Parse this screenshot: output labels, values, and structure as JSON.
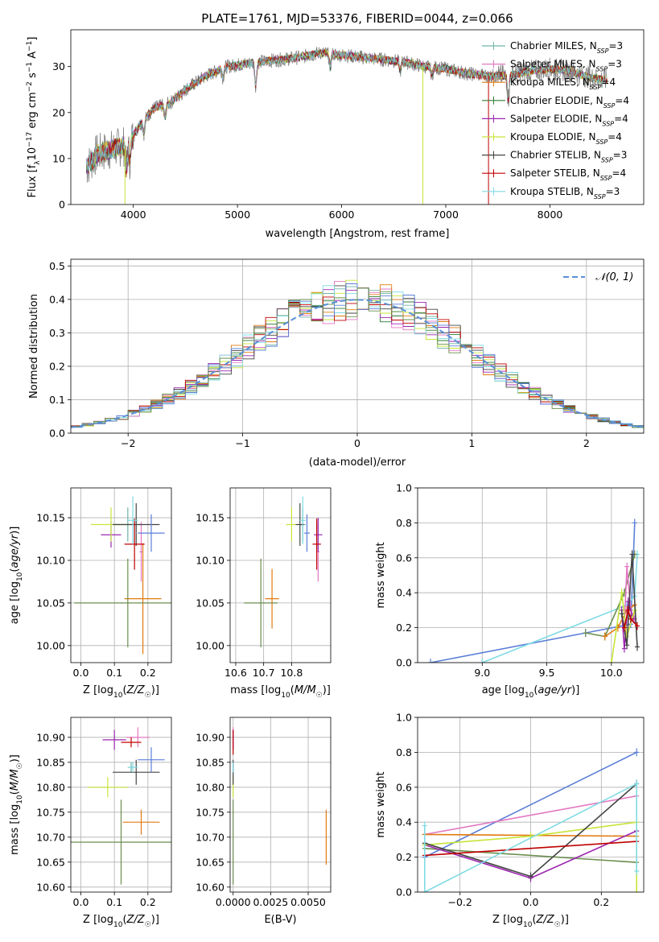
{
  "figure": {
    "title": "PLATE=1761, MJD=53376, FIBERID=0044, z=0.066"
  },
  "colors": {
    "grid": "#b0b0b0",
    "axis": "#000000",
    "gaussian": "#5a8fd6"
  },
  "models": [
    {
      "label": "Chabrier MILES",
      "nssp": "3",
      "color": "#6fb3a8"
    },
    {
      "label": "Salpeter MILES",
      "nssp": "3",
      "color": "#e377c2"
    },
    {
      "label": "Kroupa MILES",
      "nssp": "4",
      "color": "#e07b10"
    },
    {
      "label": "Chabrier ELODIE",
      "nssp": "4",
      "color": "#2e7d32"
    },
    {
      "label": "Salpeter ELODIE",
      "nssp": "4",
      "color": "#9c27b0"
    },
    {
      "label": "Kroupa ELODIE",
      "nssp": "4",
      "color": "#c6e53a"
    },
    {
      "label": "Chabrier STELIB",
      "nssp": "3",
      "color": "#444444"
    },
    {
      "label": "Salpeter STELIB",
      "nssp": "4",
      "color": "#c00000"
    },
    {
      "label": "Kroupa STELIB",
      "nssp": "3",
      "color": "#7fdbe4"
    }
  ],
  "extra_series_colors": [
    "#5b7fd8",
    "#6b8e4e"
  ],
  "chart_data": [
    {
      "type": "line",
      "id": "spectrum",
      "title": "PLATE=1761, MJD=53376, FIBERID=0044, z=0.066",
      "xlabel": "wavelength [Angstrom, rest frame]",
      "ylabel": "Flux [f_λ 10^-17 erg cm^-2 s^-1 A^-1]",
      "xlim": [
        3400,
        8900
      ],
      "ylim": [
        0,
        38
      ],
      "xticks": [
        4000,
        5000,
        6000,
        7000,
        8000
      ],
      "yticks": [
        0,
        10,
        20,
        30
      ],
      "grid": false,
      "legend": "right",
      "continuum": [
        [
          3550,
          8
        ],
        [
          3650,
          11
        ],
        [
          3800,
          12
        ],
        [
          3950,
          13
        ],
        [
          4050,
          17
        ],
        [
          4200,
          21
        ],
        [
          4350,
          22
        ],
        [
          4500,
          25
        ],
        [
          4700,
          28
        ],
        [
          4900,
          30
        ],
        [
          5050,
          30.5
        ],
        [
          5200,
          31
        ],
        [
          5400,
          31.5
        ],
        [
          5600,
          32
        ],
        [
          5800,
          33
        ],
        [
          6000,
          32.5
        ],
        [
          6200,
          32
        ],
        [
          6400,
          31.5
        ],
        [
          6600,
          31
        ],
        [
          6800,
          30
        ],
        [
          7000,
          29.5
        ],
        [
          7200,
          28.5
        ],
        [
          7400,
          28
        ],
        [
          7600,
          28
        ],
        [
          7800,
          29
        ],
        [
          8000,
          29.5
        ],
        [
          8200,
          29
        ],
        [
          8400,
          27.5
        ],
        [
          8550,
          27
        ]
      ],
      "features": [
        [
          3934,
          5
        ],
        [
          3968,
          4
        ],
        [
          4102,
          3
        ],
        [
          4304,
          3
        ],
        [
          4861,
          2
        ],
        [
          5175,
          5
        ],
        [
          5890,
          3
        ],
        [
          6563,
          2
        ],
        [
          6867,
          2
        ],
        [
          7600,
          5
        ]
      ],
      "spikes": [
        [
          3920,
          0
        ],
        [
          6780,
          0
        ],
        [
          7410,
          0
        ]
      ]
    },
    {
      "type": "histogram",
      "id": "residuals",
      "xlabel": "(data-model)/error",
      "ylabel": "Normed distribution",
      "xlim": [
        -2.5,
        2.5
      ],
      "ylim": [
        0,
        0.52
      ],
      "xticks": [
        -2,
        -1,
        0,
        1,
        2
      ],
      "yticks": [
        0.0,
        0.1,
        0.2,
        0.3,
        0.4,
        0.5
      ],
      "grid": true,
      "legend": "top-right",
      "bin_width": 0.1,
      "gaussian_label": "𝒩(0, 1)"
    },
    {
      "type": "scatter",
      "id": "age_vs_Z",
      "xlabel": "Z [log10(Z/Z☉)]",
      "ylabel": "age [log10(age/yr)]",
      "xlim": [
        -0.03,
        0.27
      ],
      "ylim": [
        9.98,
        10.185
      ],
      "xticks": [
        0.0,
        0.1,
        0.2
      ],
      "yticks": [
        10.0,
        10.05,
        10.1,
        10.15
      ],
      "grid": true,
      "points": [
        {
          "x": 0.14,
          "y": 10.142,
          "xerr": 0.04,
          "yerr": 0.02,
          "color": "#6fb3a8"
        },
        {
          "x": 0.18,
          "y": 10.11,
          "xerr": 0.005,
          "yerr": 0.035,
          "color": "#e377c2"
        },
        {
          "x": 0.185,
          "y": 10.055,
          "xerr": 0.055,
          "yerr": 0.065,
          "color": "#e07b10"
        },
        {
          "x": 0.14,
          "y": 10.05,
          "xerr": 0.16,
          "yerr": 0.052,
          "color": "#6b8e4e"
        },
        {
          "x": 0.09,
          "y": 10.13,
          "xerr": 0.03,
          "yerr": 0.015,
          "color": "#9c27b0"
        },
        {
          "x": 0.09,
          "y": 10.142,
          "xerr": 0.06,
          "yerr": 0.02,
          "color": "#c6e53a"
        },
        {
          "x": 0.165,
          "y": 10.142,
          "xerr": 0.07,
          "yerr": 0.025,
          "color": "#444444"
        },
        {
          "x": 0.16,
          "y": 10.119,
          "xerr": 0.03,
          "yerr": 0.03,
          "color": "#c00000"
        },
        {
          "x": 0.155,
          "y": 10.147,
          "xerr": 0.015,
          "yerr": 0.028,
          "color": "#7fdbe4"
        },
        {
          "x": 0.21,
          "y": 10.132,
          "xerr": 0.04,
          "yerr": 0.022,
          "color": "#5b7fd8"
        }
      ]
    },
    {
      "type": "scatter",
      "id": "age_vs_mass",
      "xlabel": "mass [log10(M/M☉)]",
      "ylabel": "",
      "xlim": [
        10.58,
        10.94
      ],
      "ylim": [
        9.98,
        10.185
      ],
      "xticks": [
        10.6,
        10.7,
        10.8
      ],
      "yticks": [
        10.0,
        10.05,
        10.1,
        10.15
      ],
      "grid": true,
      "points": [
        {
          "x": 10.84,
          "y": 10.142,
          "xerr": 0.01,
          "yerr": 0.02,
          "color": "#6fb3a8"
        },
        {
          "x": 10.895,
          "y": 10.11,
          "xerr": 0.005,
          "yerr": 0.035,
          "color": "#e377c2"
        },
        {
          "x": 10.73,
          "y": 10.055,
          "xerr": 0.025,
          "yerr": 0.035,
          "color": "#e07b10"
        },
        {
          "x": 10.69,
          "y": 10.05,
          "xerr": 0.06,
          "yerr": 0.052,
          "color": "#6b8e4e"
        },
        {
          "x": 10.895,
          "y": 10.13,
          "xerr": 0.015,
          "yerr": 0.02,
          "color": "#9c27b0"
        },
        {
          "x": 10.8,
          "y": 10.142,
          "xerr": 0.02,
          "yerr": 0.02,
          "color": "#c6e53a"
        },
        {
          "x": 10.83,
          "y": 10.142,
          "xerr": 0.015,
          "yerr": 0.025,
          "color": "#444444"
        },
        {
          "x": 10.89,
          "y": 10.119,
          "xerr": 0.015,
          "yerr": 0.03,
          "color": "#c00000"
        },
        {
          "x": 10.84,
          "y": 10.147,
          "xerr": 0.01,
          "yerr": 0.028,
          "color": "#7fdbe4"
        },
        {
          "x": 10.855,
          "y": 10.132,
          "xerr": 0.01,
          "yerr": 0.022,
          "color": "#5b7fd8"
        }
      ]
    },
    {
      "type": "line",
      "id": "massweight_vs_age",
      "xlabel": "age [log10(age/yr)]",
      "ylabel": "mass weight",
      "xlim": [
        8.5,
        10.25
      ],
      "ylim": [
        0,
        1.0
      ],
      "xticks": [
        9.0,
        9.5,
        10.0
      ],
      "yticks": [
        0.0,
        0.2,
        0.4,
        0.6,
        0.8,
        1.0
      ],
      "grid": true,
      "series": [
        {
          "color": "#5b7fd8",
          "x": [
            8.6,
            9.8,
            10.15,
            10.18
          ],
          "y": [
            0.0,
            0.17,
            0.22,
            0.8
          ]
        },
        {
          "color": "#7fdbe4",
          "x": [
            9.0,
            10.12,
            10.18,
            10.2
          ],
          "y": [
            0.0,
            0.33,
            0.38,
            0.62
          ]
        },
        {
          "color": "#6b8e4e",
          "x": [
            9.8,
            9.95,
            10.1,
            10.18
          ],
          "y": [
            0.17,
            0.15,
            0.4,
            0.62
          ]
        },
        {
          "color": "#e07b10",
          "x": [
            9.95,
            10.05,
            10.12,
            10.18
          ],
          "y": [
            0.15,
            0.2,
            0.3,
            0.33
          ]
        },
        {
          "color": "#e377c2",
          "x": [
            10.1,
            10.12,
            10.15,
            10.18
          ],
          "y": [
            0.2,
            0.55,
            0.3,
            0.25
          ]
        },
        {
          "color": "#9c27b0",
          "x": [
            10.08,
            10.1,
            10.13,
            10.17
          ],
          "y": [
            0.3,
            0.08,
            0.35,
            0.25
          ]
        },
        {
          "color": "#c6e53a",
          "x": [
            10.0,
            10.08,
            10.12,
            10.18
          ],
          "y": [
            0.0,
            0.4,
            0.15,
            0.3
          ]
        },
        {
          "color": "#444444",
          "x": [
            10.08,
            10.12,
            10.16,
            10.2
          ],
          "y": [
            0.28,
            0.1,
            0.62,
            0.09
          ]
        },
        {
          "color": "#c00000",
          "x": [
            10.1,
            10.13,
            10.15,
            10.2
          ],
          "y": [
            0.2,
            0.3,
            0.25,
            0.21
          ]
        }
      ]
    },
    {
      "type": "scatter",
      "id": "mass_vs_Z",
      "xlabel": "Z [log10(Z/Z☉)]",
      "ylabel": "mass [log10(M/M☉)]",
      "xlim": [
        -0.03,
        0.27
      ],
      "ylim": [
        10.59,
        10.94
      ],
      "xticks": [
        0.0,
        0.1,
        0.2
      ],
      "yticks": [
        10.6,
        10.65,
        10.7,
        10.75,
        10.8,
        10.85,
        10.9
      ],
      "grid": true,
      "points": [
        {
          "x": 0.15,
          "y": 10.84,
          "xerr": 0.01,
          "yerr": 0.01,
          "color": "#6fb3a8"
        },
        {
          "x": 0.17,
          "y": 10.9,
          "xerr": 0.035,
          "yerr": 0.02,
          "color": "#e377c2"
        },
        {
          "x": 0.18,
          "y": 10.73,
          "xerr": 0.055,
          "yerr": 0.025,
          "color": "#e07b10"
        },
        {
          "x": 0.12,
          "y": 10.69,
          "xerr": 0.15,
          "yerr": 0.085,
          "color": "#6b8e4e"
        },
        {
          "x": 0.1,
          "y": 10.895,
          "xerr": 0.035,
          "yerr": 0.02,
          "color": "#9c27b0"
        },
        {
          "x": 0.08,
          "y": 10.8,
          "xerr": 0.06,
          "yerr": 0.02,
          "color": "#c6e53a"
        },
        {
          "x": 0.165,
          "y": 10.83,
          "xerr": 0.07,
          "yerr": 0.025,
          "color": "#444444"
        },
        {
          "x": 0.15,
          "y": 10.89,
          "xerr": 0.03,
          "yerr": 0.01,
          "color": "#c00000"
        },
        {
          "x": 0.155,
          "y": 10.84,
          "xerr": 0.015,
          "yerr": 0.01,
          "color": "#7fdbe4"
        },
        {
          "x": 0.21,
          "y": 10.855,
          "xerr": 0.04,
          "yerr": 0.025,
          "color": "#5b7fd8"
        }
      ]
    },
    {
      "type": "scatter",
      "id": "mass_vs_ebv",
      "xlabel": "E(B-V)",
      "ylabel": "",
      "xlim": [
        -0.0002,
        0.0065
      ],
      "ylim": [
        10.59,
        10.94
      ],
      "xticks": [
        0.0,
        0.0025,
        0.005
      ],
      "xticklabels": [
        "0.0000",
        "0.0025",
        "0.0050"
      ],
      "yticks": [
        10.6,
        10.65,
        10.7,
        10.75,
        10.8,
        10.85,
        10.9
      ],
      "grid": true,
      "points": [
        {
          "x": 0.0,
          "y": 10.84,
          "xerr": 0,
          "yerr": 0.01,
          "color": "#6fb3a8"
        },
        {
          "x": 0.0,
          "y": 10.9,
          "xerr": 0,
          "yerr": 0.02,
          "color": "#e377c2"
        },
        {
          "x": 0.0062,
          "y": 10.7,
          "xerr": 0,
          "yerr": 0.055,
          "color": "#e07b10"
        },
        {
          "x": 0.0,
          "y": 10.69,
          "xerr": 0,
          "yerr": 0.085,
          "color": "#6b8e4e"
        },
        {
          "x": 0.0,
          "y": 10.895,
          "xerr": 0,
          "yerr": 0.02,
          "color": "#9c27b0"
        },
        {
          "x": 0.0,
          "y": 10.8,
          "xerr": 0,
          "yerr": 0.02,
          "color": "#c6e53a"
        },
        {
          "x": 0.0,
          "y": 10.83,
          "xerr": 0,
          "yerr": 0.025,
          "color": "#444444"
        },
        {
          "x": 0.0,
          "y": 10.89,
          "xerr": 0,
          "yerr": 0.025,
          "color": "#c00000"
        },
        {
          "x": 0.0,
          "y": 10.84,
          "xerr": 0,
          "yerr": 0.01,
          "color": "#7fdbe4"
        }
      ]
    },
    {
      "type": "line",
      "id": "massweight_vs_Z",
      "xlabel": "Z [log10(Z/Z☉)]",
      "ylabel": "mass weight",
      "xlim": [
        -0.32,
        0.32
      ],
      "ylim": [
        0,
        1.0
      ],
      "xticks": [
        -0.2,
        0.0,
        0.2
      ],
      "yticks": [
        0.0,
        0.2,
        0.4,
        0.6,
        0.8,
        1.0
      ],
      "grid": true,
      "series": [
        {
          "color": "#5b7fd8",
          "x": [
            -0.3,
            0.3
          ],
          "y": [
            0.2,
            0.8
          ]
        },
        {
          "color": "#e377c2",
          "x": [
            -0.3,
            0.3
          ],
          "y": [
            0.33,
            0.55
          ]
        },
        {
          "color": "#e07b10",
          "x": [
            -0.3,
            0.3
          ],
          "y": [
            0.33,
            0.32
          ]
        },
        {
          "color": "#6b8e4e",
          "x": [
            -0.3,
            0.3
          ],
          "y": [
            0.25,
            0.17
          ]
        },
        {
          "color": "#9c27b0",
          "x": [
            -0.3,
            0.0,
            0.3
          ],
          "y": [
            0.27,
            0.08,
            0.35
          ]
        },
        {
          "color": "#c6e53a",
          "x": [
            -0.3,
            0.0,
            0.3,
            0.3
          ],
          "y": [
            0.27,
            0.32,
            0.4,
            0.0
          ]
        },
        {
          "color": "#444444",
          "x": [
            -0.3,
            0.0,
            0.3
          ],
          "y": [
            0.28,
            0.09,
            0.62
          ]
        },
        {
          "color": "#c00000",
          "x": [
            -0.3,
            0.3
          ],
          "y": [
            0.21,
            0.29
          ]
        },
        {
          "color": "#7fdbe4",
          "x": [
            -0.3,
            -0.3,
            0.3,
            0.3
          ],
          "y": [
            0.38,
            0.0,
            0.62,
            0.12
          ]
        }
      ]
    }
  ]
}
